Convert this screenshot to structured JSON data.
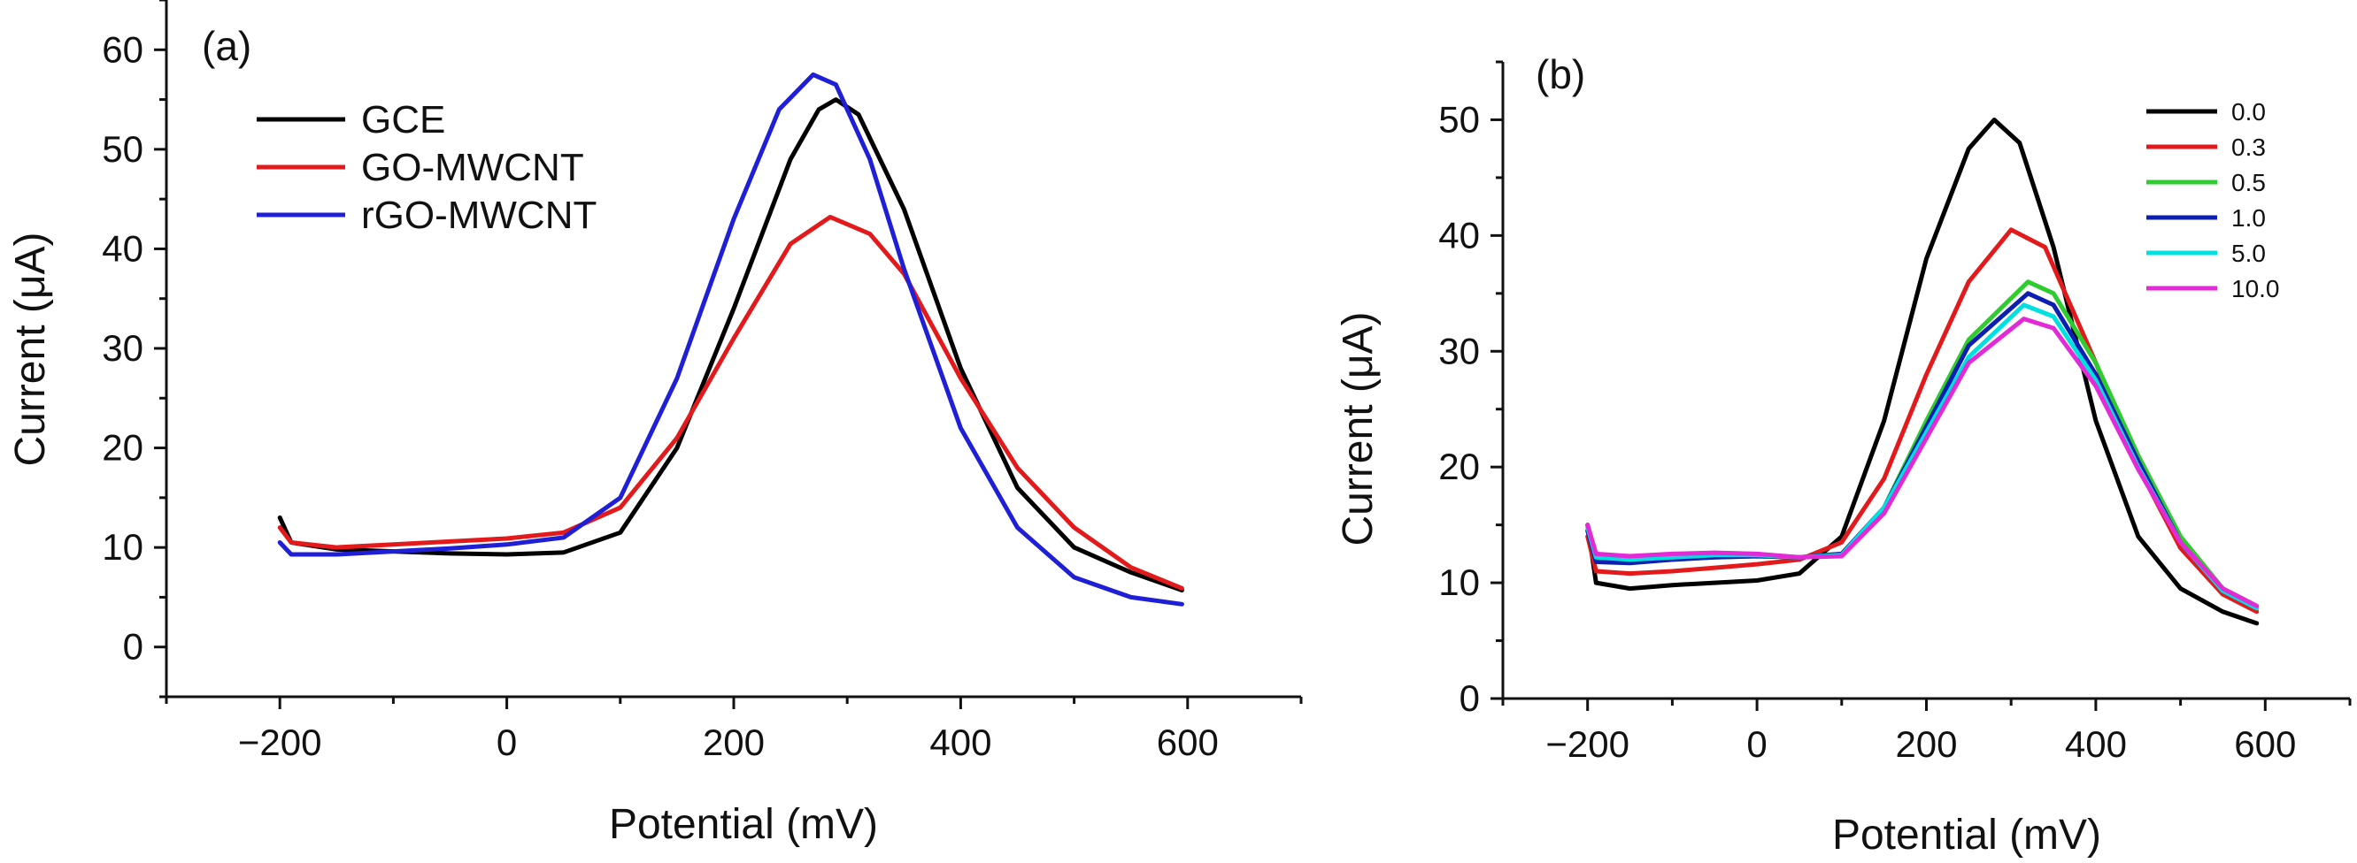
{
  "chart_data": [
    {
      "type": "line",
      "panel_label": "(a)",
      "xlabel": "Potential (mV)",
      "ylabel": "Current (μA)",
      "xlim": [
        -300,
        700
      ],
      "ylim": [
        -5,
        65
      ],
      "xticks": [
        -200,
        0,
        200,
        400,
        600
      ],
      "xtick_labels": [
        "−200",
        "0",
        "200",
        "400",
        "600"
      ],
      "yticks": [
        0,
        10,
        20,
        30,
        40,
        50,
        60
      ],
      "ytick_labels": [
        "0",
        "10",
        "20",
        "30",
        "40",
        "50",
        "60"
      ],
      "legend_position": "top-left",
      "series": [
        {
          "name": "GCE",
          "color": "#000000",
          "x": [
            -200,
            -190,
            -150,
            -100,
            -50,
            0,
            50,
            100,
            150,
            200,
            250,
            275,
            290,
            310,
            350,
            400,
            450,
            500,
            550,
            595
          ],
          "y": [
            13.0,
            10.5,
            9.8,
            9.6,
            9.4,
            9.3,
            9.5,
            11.5,
            20.0,
            34.0,
            49.0,
            54.0,
            55.0,
            53.5,
            44.0,
            28.0,
            16.0,
            10.0,
            7.5,
            5.7
          ]
        },
        {
          "name": "GO-MWCNT",
          "color": "#e31a1c",
          "x": [
            -200,
            -190,
            -150,
            -100,
            -50,
            0,
            50,
            100,
            150,
            200,
            250,
            285,
            320,
            350,
            400,
            450,
            500,
            550,
            595
          ],
          "y": [
            12.0,
            10.5,
            10.0,
            10.3,
            10.6,
            10.9,
            11.5,
            14.0,
            21.0,
            31.0,
            40.5,
            43.2,
            41.5,
            37.5,
            27.0,
            18.0,
            12.0,
            8.0,
            5.9
          ]
        },
        {
          "name": "rGO-MWCNT",
          "color": "#1f1fd6",
          "x": [
            -200,
            -190,
            -150,
            -100,
            -50,
            0,
            50,
            100,
            150,
            200,
            240,
            270,
            290,
            320,
            350,
            400,
            450,
            500,
            550,
            595
          ],
          "y": [
            10.5,
            9.3,
            9.3,
            9.6,
            9.9,
            10.3,
            11.0,
            15.0,
            27.0,
            43.0,
            54.0,
            57.5,
            56.5,
            49.0,
            38.0,
            22.0,
            12.0,
            7.0,
            5.0,
            4.3
          ]
        }
      ]
    },
    {
      "type": "line",
      "panel_label": "(b)",
      "xlabel": "Potential (mV)",
      "ylabel": "Current (μA)",
      "xlim": [
        -300,
        700
      ],
      "ylim": [
        0,
        55
      ],
      "xticks": [
        -200,
        0,
        200,
        400,
        600
      ],
      "xtick_labels": [
        "−200",
        "0",
        "200",
        "400",
        "600"
      ],
      "yticks": [
        0,
        10,
        20,
        30,
        40,
        50
      ],
      "ytick_labels": [
        "0",
        "10",
        "20",
        "30",
        "40",
        "50"
      ],
      "legend_position": "top-right",
      "series": [
        {
          "name": "0.0",
          "color": "#000000",
          "x": [
            -200,
            -190,
            -150,
            -100,
            -50,
            0,
            50,
            100,
            150,
            200,
            250,
            280,
            310,
            350,
            400,
            450,
            500,
            550,
            590
          ],
          "y": [
            15.0,
            10.0,
            9.5,
            9.8,
            10.0,
            10.2,
            10.8,
            14.0,
            24.0,
            38.0,
            47.5,
            50.0,
            48.0,
            39.0,
            24.0,
            14.0,
            9.5,
            7.5,
            6.5
          ]
        },
        {
          "name": "0.3",
          "color": "#e31a1c",
          "x": [
            -200,
            -190,
            -150,
            -100,
            -50,
            0,
            50,
            100,
            150,
            200,
            250,
            300,
            340,
            400,
            450,
            500,
            550,
            590
          ],
          "y": [
            14.0,
            11.0,
            10.8,
            11.0,
            11.3,
            11.6,
            12.0,
            13.5,
            19.0,
            28.0,
            36.0,
            40.5,
            39.0,
            29.0,
            20.0,
            13.0,
            9.0,
            7.5
          ]
        },
        {
          "name": "0.5",
          "color": "#2ecc2e",
          "x": [
            -200,
            -190,
            -150,
            -100,
            -50,
            0,
            50,
            100,
            150,
            200,
            250,
            320,
            350,
            400,
            450,
            500,
            550,
            590
          ],
          "y": [
            14.5,
            12.0,
            11.8,
            12.0,
            12.2,
            12.3,
            12.2,
            12.5,
            16.5,
            24.0,
            31.0,
            36.0,
            35.0,
            29.0,
            21.0,
            14.0,
            9.5,
            8.0
          ]
        },
        {
          "name": "1.0",
          "color": "#0d1fb0",
          "x": [
            -200,
            -190,
            -150,
            -100,
            -50,
            0,
            50,
            100,
            150,
            200,
            250,
            320,
            350,
            400,
            450,
            500,
            550,
            590
          ],
          "y": [
            14.5,
            11.8,
            11.7,
            12.0,
            12.2,
            12.3,
            12.2,
            12.5,
            16.5,
            23.5,
            30.5,
            35.0,
            34.0,
            28.0,
            20.5,
            13.5,
            9.3,
            7.8
          ]
        },
        {
          "name": "5.0",
          "color": "#00e0e0",
          "x": [
            -200,
            -190,
            -150,
            -100,
            -50,
            0,
            50,
            100,
            150,
            200,
            250,
            315,
            350,
            400,
            450,
            500,
            550,
            590
          ],
          "y": [
            14.8,
            12.2,
            12.0,
            12.2,
            12.4,
            12.4,
            12.2,
            12.4,
            16.5,
            23.0,
            29.5,
            34.0,
            33.0,
            27.5,
            20.0,
            13.5,
            9.3,
            7.8
          ]
        },
        {
          "name": "10.0",
          "color": "#e22ad6",
          "x": [
            -200,
            -190,
            -150,
            -100,
            -50,
            0,
            50,
            100,
            150,
            200,
            250,
            315,
            350,
            400,
            450,
            500,
            550,
            590
          ],
          "y": [
            15.0,
            12.5,
            12.3,
            12.5,
            12.6,
            12.5,
            12.2,
            12.3,
            16.0,
            22.5,
            29.0,
            32.8,
            32.0,
            27.0,
            19.8,
            13.5,
            9.5,
            8.0
          ]
        }
      ]
    }
  ]
}
